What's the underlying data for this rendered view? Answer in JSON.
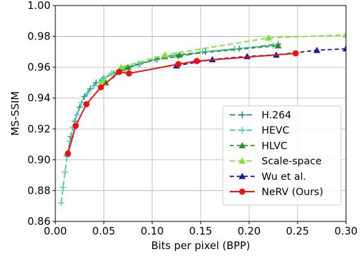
{
  "chart_data": {
    "type": "line",
    "xlabel": "Bits per pixel (BPP)",
    "ylabel": "MS-SSIM",
    "xlim": [
      0.0,
      0.3
    ],
    "ylim": [
      0.86,
      1.0
    ],
    "xticks": [
      "0.00",
      "0.05",
      "0.10",
      "0.15",
      "0.20",
      "0.25",
      "0.30"
    ],
    "yticks": [
      "0.86",
      "0.88",
      "0.90",
      "0.92",
      "0.94",
      "0.96",
      "0.98",
      "1.00"
    ],
    "grid": true,
    "legend_position": "lower-right",
    "series": [
      {
        "name": "H.264",
        "color": "#1f8a8a",
        "marker": "plus",
        "dash": "8,4",
        "x": [
          0.012,
          0.016,
          0.02,
          0.025,
          0.03,
          0.036,
          0.042,
          0.05,
          0.06,
          0.072,
          0.087,
          0.105,
          0.127,
          0.155,
          0.19,
          0.23
        ],
        "y": [
          0.903,
          0.915,
          0.925,
          0.934,
          0.941,
          0.946,
          0.95,
          0.953,
          0.956,
          0.959,
          0.962,
          0.965,
          0.967,
          0.97,
          0.972,
          0.975
        ]
      },
      {
        "name": "HEVC",
        "color": "#48c9b0",
        "marker": "plus",
        "dash": "8,4",
        "x": [
          0.006,
          0.008,
          0.01,
          0.012,
          0.015,
          0.018,
          0.022,
          0.027,
          0.033,
          0.04,
          0.048,
          0.058,
          0.07,
          0.085,
          0.103,
          0.125,
          0.152,
          0.185,
          0.225
        ],
        "y": [
          0.872,
          0.882,
          0.892,
          0.902,
          0.912,
          0.921,
          0.929,
          0.937,
          0.943,
          0.948,
          0.952,
          0.956,
          0.959,
          0.962,
          0.965,
          0.968,
          0.97,
          0.972,
          0.974
        ]
      },
      {
        "name": "HLVC",
        "color": "#2e8b2e",
        "marker": "triangle",
        "dash": "6,4",
        "x": [
          0.052,
          0.075,
          0.113,
          0.128,
          0.23
        ],
        "y": [
          0.95,
          0.96,
          0.967,
          0.968,
          0.974
        ]
      },
      {
        "name": "Scale-space",
        "color": "#7fe030",
        "marker": "triangle",
        "dash": "8,4",
        "x": [
          0.048,
          0.068,
          0.113,
          0.22,
          0.3
        ],
        "y": [
          0.951,
          0.96,
          0.968,
          0.979,
          0.981
        ]
      },
      {
        "name": "Wu et al.",
        "color": "#1a1a9a",
        "marker": "triangle",
        "dash": "6,4",
        "x": [
          0.125,
          0.162,
          0.198,
          0.228,
          0.27,
          0.3
        ],
        "y": [
          0.961,
          0.965,
          0.967,
          0.968,
          0.971,
          0.972
        ]
      },
      {
        "name": "NeRV (Ours)",
        "color": "#ee1111",
        "marker": "circle",
        "dash": "",
        "x": [
          0.013,
          0.021,
          0.032,
          0.047,
          0.066,
          0.076,
          0.127,
          0.146,
          0.248
        ],
        "y": [
          0.904,
          0.922,
          0.936,
          0.947,
          0.957,
          0.956,
          0.962,
          0.964,
          0.969
        ]
      }
    ]
  }
}
